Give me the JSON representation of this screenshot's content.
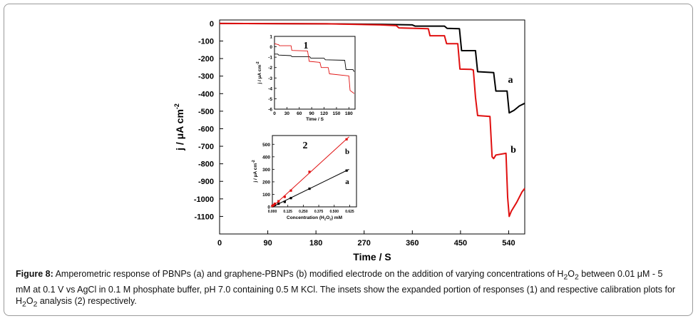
{
  "figure": {
    "caption_label": "Figure 8:",
    "caption_text_1": " Amperometric response of PBNPs (a) and graphene-PBNPs (b) modified electrode on the addition of varying concentrations of H",
    "caption_sub_2a": "2",
    "caption_o_a": "O",
    "caption_sub_2b": "2",
    "caption_text_2": " between 0.01 μM - 5 mM at 0.1 V vs AgCl in 0.1 M phosphate buffer, pH 7.0 containing 0.5 M KCl. The insets show the expanded portion of responses (1) and respective calibration plots for H",
    "caption_sub_2c": "2",
    "caption_o_b": "O",
    "caption_sub_2d": "2",
    "caption_text_3": " analysis (2) respectively."
  },
  "colors": {
    "curve_a": "#000000",
    "curve_b": "#e01010",
    "frame": "#9a9a9a"
  },
  "chart_data": [
    {
      "id": "main",
      "type": "line",
      "title": "",
      "xlabel": "Time / S",
      "ylabel": "j / μA cm",
      "ylabel_sup": "-2",
      "xlim": [
        0,
        570
      ],
      "ylim": [
        -1200,
        20
      ],
      "xticks": [
        0,
        90,
        180,
        270,
        360,
        450,
        540
      ],
      "yticks": [
        0,
        -100,
        -200,
        -300,
        -400,
        -500,
        -600,
        -700,
        -800,
        -900,
        -1000,
        -1100
      ],
      "series": [
        {
          "name": "a",
          "x": [
            0,
            200,
            300,
            360,
            365,
            420,
            425,
            448,
            452,
            478,
            482,
            512,
            516,
            537,
            541,
            550,
            560,
            570
          ],
          "y": [
            0,
            -2,
            -5,
            -8,
            -15,
            -15,
            -28,
            -30,
            -155,
            -155,
            -275,
            -280,
            -385,
            -385,
            -510,
            -495,
            -470,
            -455
          ]
        },
        {
          "name": "b",
          "x": [
            0,
            200,
            300,
            330,
            335,
            390,
            393,
            420,
            424,
            445,
            449,
            470,
            474,
            478,
            482,
            505,
            509,
            512,
            516,
            535,
            538,
            541,
            545,
            555,
            565,
            570
          ],
          "y": [
            0,
            -2,
            -8,
            -12,
            -25,
            -30,
            -70,
            -70,
            -115,
            -115,
            -260,
            -262,
            -265,
            -420,
            -525,
            -530,
            -760,
            -770,
            -750,
            -740,
            -990,
            -1100,
            -1070,
            -1020,
            -960,
            -940
          ]
        }
      ]
    },
    {
      "id": "inset1",
      "type": "line",
      "label": "1",
      "xlabel": "Time / S",
      "ylabel": "j / μA cm",
      "ylabel_sup": "-2",
      "xlim": [
        0,
        195
      ],
      "ylim": [
        -6,
        1
      ],
      "xticks": [
        0,
        30,
        60,
        90,
        120,
        150,
        180
      ],
      "yticks": [
        1,
        0,
        -1,
        -2,
        -3,
        -4,
        -5,
        -6
      ],
      "series": [
        {
          "name": "a",
          "x": [
            0,
            8,
            10,
            40,
            42,
            85,
            88,
            120,
            123,
            170,
            173,
            190,
            193
          ],
          "y": [
            -0.7,
            -0.7,
            -0.8,
            -0.85,
            -0.95,
            -0.95,
            -1.1,
            -1.1,
            -1.25,
            -1.3,
            -2.2,
            -2.2,
            -2.4
          ]
        },
        {
          "name": "b",
          "x": [
            0,
            10,
            12,
            40,
            42,
            80,
            84,
            110,
            113,
            130,
            133,
            180,
            183,
            193
          ],
          "y": [
            0.3,
            0.2,
            0.1,
            0.1,
            -0.35,
            -0.4,
            -1.4,
            -1.5,
            -2.0,
            -2.0,
            -2.6,
            -2.8,
            -4.2,
            -4.5
          ]
        }
      ]
    },
    {
      "id": "inset2",
      "type": "scatter",
      "label": "2",
      "xlabel": "Concentration (H",
      "xlabel_sub_a": "2",
      "xlabel_o": "O",
      "xlabel_sub_b": "2",
      "xlabel_end": ") mM",
      "ylabel": "j / μA cm",
      "ylabel_sup": "-2",
      "xlim": [
        0,
        0.68
      ],
      "ylim": [
        0,
        570
      ],
      "xticks": [
        "0.000",
        "0.125",
        "0.250",
        "0.375",
        "0.500",
        "0.625"
      ],
      "xtick_values": [
        0,
        0.125,
        0.25,
        0.375,
        0.5,
        0.625
      ],
      "yticks": [
        0,
        100,
        200,
        300,
        400,
        500
      ],
      "series": [
        {
          "name": "a",
          "x": [
            0.0,
            0.01,
            0.02,
            0.05,
            0.1,
            0.15,
            0.3,
            0.6
          ],
          "y": [
            5,
            10,
            15,
            25,
            40,
            70,
            145,
            290
          ],
          "fit": [
            [
              0,
              0
            ],
            [
              0.62,
              300
            ]
          ]
        },
        {
          "name": "b",
          "x": [
            0.0,
            0.01,
            0.02,
            0.05,
            0.1,
            0.15,
            0.3,
            0.6
          ],
          "y": [
            8,
            15,
            25,
            45,
            80,
            130,
            280,
            540
          ],
          "fit": [
            [
              0,
              0
            ],
            [
              0.62,
              560
            ]
          ]
        }
      ]
    }
  ]
}
